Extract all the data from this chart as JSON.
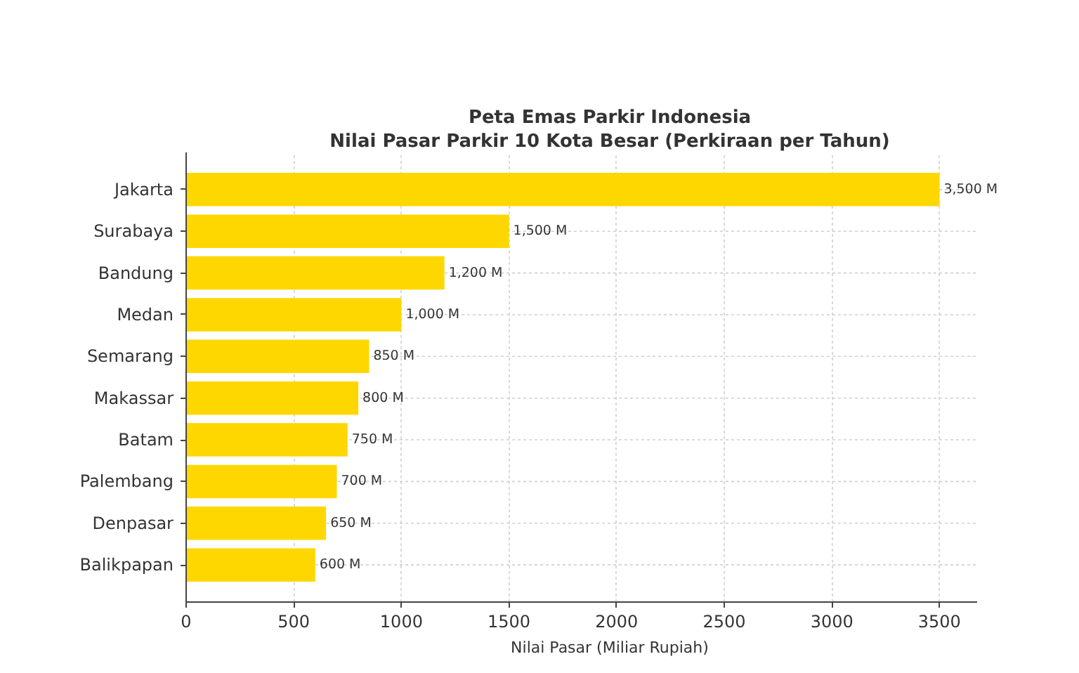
{
  "chart_data": {
    "type": "bar",
    "orientation": "horizontal",
    "title": "Peta Emas Parkir Indonesia",
    "subtitle": "Nilai Pasar Parkir 10 Kota Besar (Perkiraan per Tahun)",
    "xlabel": "Nilai Pasar (Miliar Rupiah)",
    "categories": [
      "Jakarta",
      "Surabaya",
      "Bandung",
      "Medan",
      "Semarang",
      "Makassar",
      "Batam",
      "Palembang",
      "Denpasar",
      "Balikpapan"
    ],
    "values": [
      3500,
      1500,
      1200,
      1000,
      850,
      800,
      750,
      700,
      650,
      600
    ],
    "value_labels": [
      "3,500 M",
      "1,500 M",
      "1,200 M",
      "1,000 M",
      "850 M",
      "800 M",
      "750 M",
      "700 M",
      "650 M",
      "600 M"
    ],
    "color": "#ffd700",
    "xlim": [
      0,
      3675
    ],
    "xticks": [
      0,
      500,
      1000,
      1500,
      2000,
      2500,
      3000,
      3500
    ],
    "grid": true
  }
}
